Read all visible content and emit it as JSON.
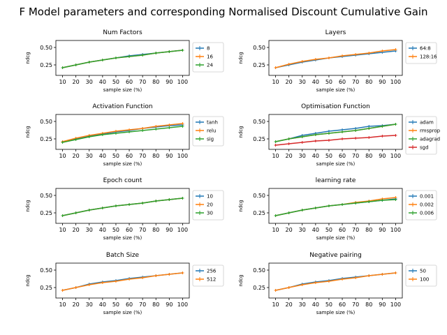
{
  "figure": {
    "title": "F Model parameters and corresponding Normalised Discount Cumulative Gain"
  },
  "chart_data": [
    {
      "type": "line",
      "title": "Num Factors",
      "xlabel": "sample size (%)",
      "ylabel": "ndcg",
      "x": [
        10,
        20,
        30,
        40,
        50,
        60,
        70,
        80,
        90,
        100
      ],
      "ylim": [
        0.1,
        0.6
      ],
      "yticks": [
        0.25,
        0.5
      ],
      "legend_position": "right",
      "series": [
        {
          "name": "8",
          "color": "#1f77b4",
          "values": [
            0.21,
            0.25,
            0.29,
            0.32,
            0.35,
            0.38,
            0.4,
            0.42,
            0.44,
            0.46
          ]
        },
        {
          "name": "16",
          "color": "#ff7f0e",
          "values": [
            0.21,
            0.25,
            0.29,
            0.32,
            0.35,
            0.37,
            0.39,
            0.42,
            0.44,
            0.46
          ]
        },
        {
          "name": "24",
          "color": "#2ca02c",
          "values": [
            0.21,
            0.25,
            0.29,
            0.32,
            0.35,
            0.37,
            0.39,
            0.42,
            0.44,
            0.46
          ]
        }
      ]
    },
    {
      "type": "line",
      "title": "Layers",
      "xlabel": "sample size (%)",
      "ylabel": "ndcg",
      "x": [
        10,
        20,
        30,
        40,
        50,
        60,
        70,
        80,
        90,
        100
      ],
      "ylim": [
        0.1,
        0.6
      ],
      "yticks": [
        0.25,
        0.5
      ],
      "legend_position": "right",
      "series": [
        {
          "name": "64:8",
          "color": "#1f77b4",
          "values": [
            0.21,
            0.25,
            0.29,
            0.32,
            0.35,
            0.37,
            0.39,
            0.41,
            0.43,
            0.45
          ]
        },
        {
          "name": "128:16",
          "color": "#ff7f0e",
          "values": [
            0.21,
            0.26,
            0.3,
            0.33,
            0.35,
            0.38,
            0.4,
            0.42,
            0.45,
            0.47
          ]
        }
      ]
    },
    {
      "type": "line",
      "title": "Activation Function",
      "xlabel": "sample size (%)",
      "ylabel": "ndcg",
      "x": [
        10,
        20,
        30,
        40,
        50,
        60,
        70,
        80,
        90,
        100
      ],
      "ylim": [
        0.1,
        0.6
      ],
      "yticks": [
        0.25,
        0.5
      ],
      "legend_position": "right",
      "series": [
        {
          "name": "tanh",
          "color": "#1f77b4",
          "values": [
            0.21,
            0.25,
            0.29,
            0.32,
            0.35,
            0.37,
            0.4,
            0.42,
            0.44,
            0.45
          ]
        },
        {
          "name": "relu",
          "color": "#ff7f0e",
          "values": [
            0.21,
            0.26,
            0.3,
            0.33,
            0.36,
            0.38,
            0.4,
            0.43,
            0.45,
            0.47
          ]
        },
        {
          "name": "sig",
          "color": "#2ca02c",
          "values": [
            0.2,
            0.24,
            0.28,
            0.31,
            0.33,
            0.35,
            0.37,
            0.39,
            0.41,
            0.43
          ]
        }
      ]
    },
    {
      "type": "line",
      "title": "Optimisation Function",
      "xlabel": "sample size (%)",
      "ylabel": "ndcg",
      "x": [
        10,
        20,
        30,
        40,
        50,
        60,
        70,
        80,
        90,
        100
      ],
      "ylim": [
        0.1,
        0.6
      ],
      "yticks": [
        0.25,
        0.5
      ],
      "legend_position": "right",
      "series": [
        {
          "name": "adam",
          "color": "#1f77b4",
          "values": [
            0.21,
            0.25,
            0.3,
            0.33,
            0.36,
            0.38,
            0.4,
            0.43,
            0.44,
            0.46
          ]
        },
        {
          "name": "rmsprop",
          "color": "#ff7f0e",
          "values": [
            0.21,
            0.25,
            0.28,
            0.31,
            0.33,
            0.35,
            0.37,
            0.4,
            0.43,
            0.46
          ]
        },
        {
          "name": "adagrad",
          "color": "#2ca02c",
          "values": [
            0.21,
            0.25,
            0.28,
            0.31,
            0.33,
            0.35,
            0.37,
            0.4,
            0.43,
            0.46
          ]
        },
        {
          "name": "sgd",
          "color": "#d62728",
          "values": [
            0.16,
            0.18,
            0.2,
            0.22,
            0.23,
            0.25,
            0.26,
            0.27,
            0.29,
            0.3
          ]
        }
      ]
    },
    {
      "type": "line",
      "title": "Epoch count",
      "xlabel": "sample size (%)",
      "ylabel": "ndcg",
      "x": [
        10,
        20,
        30,
        40,
        50,
        60,
        70,
        80,
        90,
        100
      ],
      "ylim": [
        0.1,
        0.6
      ],
      "yticks": [
        0.25,
        0.5
      ],
      "legend_position": "right",
      "series": [
        {
          "name": "10",
          "color": "#1f77b4",
          "values": [
            0.21,
            0.25,
            0.29,
            0.32,
            0.35,
            0.37,
            0.39,
            0.42,
            0.44,
            0.46
          ]
        },
        {
          "name": "20",
          "color": "#ff7f0e",
          "values": [
            0.21,
            0.25,
            0.29,
            0.32,
            0.35,
            0.37,
            0.39,
            0.42,
            0.44,
            0.46
          ]
        },
        {
          "name": "30",
          "color": "#2ca02c",
          "values": [
            0.21,
            0.25,
            0.29,
            0.32,
            0.35,
            0.37,
            0.39,
            0.42,
            0.44,
            0.46
          ]
        }
      ]
    },
    {
      "type": "line",
      "title": "learning rate",
      "xlabel": "sample size (%)",
      "ylabel": "ndcg",
      "x": [
        10,
        20,
        30,
        40,
        50,
        60,
        70,
        80,
        90,
        100
      ],
      "ylim": [
        0.1,
        0.6
      ],
      "yticks": [
        0.25,
        0.5
      ],
      "legend_position": "right",
      "series": [
        {
          "name": "0.001",
          "color": "#1f77b4",
          "values": [
            0.21,
            0.25,
            0.29,
            0.32,
            0.35,
            0.37,
            0.39,
            0.41,
            0.43,
            0.45
          ]
        },
        {
          "name": "0.002",
          "color": "#ff7f0e",
          "values": [
            0.21,
            0.25,
            0.29,
            0.32,
            0.35,
            0.37,
            0.4,
            0.42,
            0.45,
            0.47
          ]
        },
        {
          "name": "0.006",
          "color": "#2ca02c",
          "values": [
            0.21,
            0.25,
            0.29,
            0.32,
            0.35,
            0.37,
            0.39,
            0.41,
            0.43,
            0.44
          ]
        }
      ]
    },
    {
      "type": "line",
      "title": "Batch Size",
      "xlabel": "sample size (%)",
      "ylabel": "ndcg",
      "x": [
        10,
        20,
        30,
        40,
        50,
        60,
        70,
        80,
        90,
        100
      ],
      "ylim": [
        0.1,
        0.6
      ],
      "yticks": [
        0.25,
        0.5
      ],
      "legend_position": "right",
      "series": [
        {
          "name": "256",
          "color": "#1f77b4",
          "values": [
            0.21,
            0.25,
            0.3,
            0.33,
            0.35,
            0.38,
            0.4,
            0.42,
            0.44,
            0.46
          ]
        },
        {
          "name": "512",
          "color": "#ff7f0e",
          "values": [
            0.21,
            0.25,
            0.29,
            0.32,
            0.34,
            0.37,
            0.39,
            0.42,
            0.44,
            0.46
          ]
        }
      ]
    },
    {
      "type": "line",
      "title": "Negative pairing",
      "xlabel": "sample size (%)",
      "ylabel": "ndcg",
      "x": [
        10,
        20,
        30,
        40,
        50,
        60,
        70,
        80,
        90,
        100
      ],
      "ylim": [
        0.1,
        0.6
      ],
      "yticks": [
        0.25,
        0.5
      ],
      "legend_position": "right",
      "series": [
        {
          "name": "50",
          "color": "#1f77b4",
          "values": [
            0.21,
            0.25,
            0.3,
            0.33,
            0.35,
            0.38,
            0.4,
            0.42,
            0.44,
            0.46
          ]
        },
        {
          "name": "100",
          "color": "#ff7f0e",
          "values": [
            0.21,
            0.25,
            0.29,
            0.32,
            0.34,
            0.37,
            0.39,
            0.42,
            0.44,
            0.46
          ]
        }
      ]
    }
  ]
}
